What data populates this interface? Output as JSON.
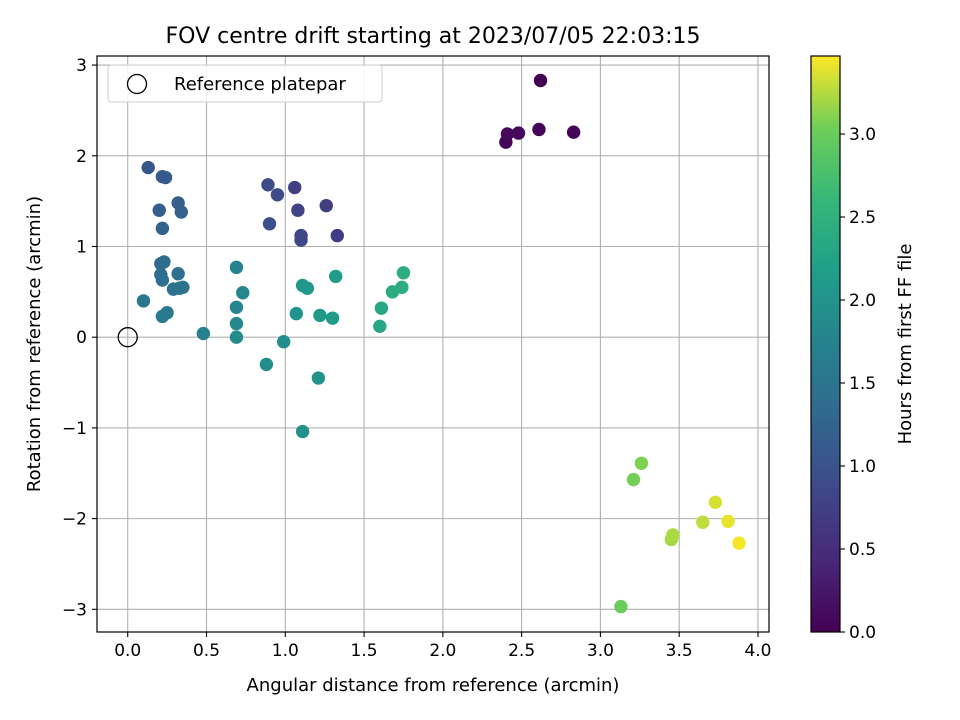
{
  "chart_data": {
    "type": "scatter",
    "title": "FOV centre drift starting at 2023/07/05 22:03:15",
    "xlabel": "Angular distance from reference (arcmin)",
    "ylabel": "Rotation from reference (arcmin)",
    "xlim": [
      -0.195,
      4.07
    ],
    "ylim": [
      -3.25,
      3.1
    ],
    "xticks": [
      0.0,
      0.5,
      1.0,
      1.5,
      2.0,
      2.5,
      3.0,
      3.5,
      4.0
    ],
    "xtick_labels": [
      "0.0",
      "0.5",
      "1.0",
      "1.5",
      "2.0",
      "2.5",
      "3.0",
      "3.5",
      "4.0"
    ],
    "yticks": [
      -3,
      -2,
      -1,
      0,
      1,
      2,
      3
    ],
    "ytick_labels": [
      "−3",
      "−2",
      "−1",
      "0",
      "1",
      "2",
      "3"
    ],
    "grid": true,
    "legend": {
      "position": "top-left",
      "entries": [
        "Reference platepar"
      ]
    },
    "reference_point": {
      "x": 0.0,
      "y": 0.0,
      "label": "Reference platepar"
    },
    "colorbar": {
      "label": "Hours from first FF file",
      "range": [
        0.0,
        3.47
      ],
      "colormap": "viridis",
      "ticks": [
        0.0,
        0.5,
        1.0,
        1.5,
        2.0,
        2.5,
        3.0
      ],
      "tick_labels": [
        "0.0",
        "0.5",
        "1.0",
        "1.5",
        "2.0",
        "2.5",
        "3.0"
      ]
    },
    "points": [
      {
        "x": 2.62,
        "y": 2.83,
        "h": 0.0
      },
      {
        "x": 2.4,
        "y": 2.15,
        "h": 0.05
      },
      {
        "x": 2.41,
        "y": 2.24,
        "h": 0.08
      },
      {
        "x": 2.48,
        "y": 2.25,
        "h": 0.1
      },
      {
        "x": 2.61,
        "y": 2.29,
        "h": 0.06
      },
      {
        "x": 2.83,
        "y": 2.26,
        "h": 0.04
      },
      {
        "x": 1.33,
        "y": 1.12,
        "h": 0.7
      },
      {
        "x": 1.26,
        "y": 1.45,
        "h": 0.72
      },
      {
        "x": 1.06,
        "y": 1.65,
        "h": 0.75
      },
      {
        "x": 1.08,
        "y": 1.4,
        "h": 0.8
      },
      {
        "x": 1.1,
        "y": 1.12,
        "h": 0.82
      },
      {
        "x": 1.1,
        "y": 1.07,
        "h": 0.85
      },
      {
        "x": 0.89,
        "y": 1.68,
        "h": 0.88
      },
      {
        "x": 0.95,
        "y": 1.57,
        "h": 0.9
      },
      {
        "x": 0.9,
        "y": 1.25,
        "h": 0.95
      },
      {
        "x": 0.13,
        "y": 1.87,
        "h": 1.05
      },
      {
        "x": 0.22,
        "y": 1.77,
        "h": 1.08
      },
      {
        "x": 0.24,
        "y": 1.76,
        "h": 1.1
      },
      {
        "x": 0.2,
        "y": 1.4,
        "h": 1.15
      },
      {
        "x": 0.32,
        "y": 1.48,
        "h": 1.18
      },
      {
        "x": 0.34,
        "y": 1.38,
        "h": 1.2
      },
      {
        "x": 0.22,
        "y": 1.2,
        "h": 1.22
      },
      {
        "x": 0.21,
        "y": 0.81,
        "h": 1.35
      },
      {
        "x": 0.23,
        "y": 0.83,
        "h": 1.36
      },
      {
        "x": 0.21,
        "y": 0.69,
        "h": 1.38
      },
      {
        "x": 0.22,
        "y": 0.63,
        "h": 1.4
      },
      {
        "x": 0.32,
        "y": 0.7,
        "h": 1.45
      },
      {
        "x": 0.29,
        "y": 0.53,
        "h": 1.48
      },
      {
        "x": 0.33,
        "y": 0.54,
        "h": 1.5
      },
      {
        "x": 0.35,
        "y": 0.55,
        "h": 1.5
      },
      {
        "x": 0.1,
        "y": 0.4,
        "h": 1.55
      },
      {
        "x": 0.25,
        "y": 0.27,
        "h": 1.58
      },
      {
        "x": 0.22,
        "y": 0.23,
        "h": 1.6
      },
      {
        "x": 0.48,
        "y": 0.04,
        "h": 1.7
      },
      {
        "x": 0.69,
        "y": 0.77,
        "h": 1.75
      },
      {
        "x": 0.73,
        "y": 0.49,
        "h": 1.8
      },
      {
        "x": 0.69,
        "y": 0.33,
        "h": 1.82
      },
      {
        "x": 0.69,
        "y": 0.15,
        "h": 1.85
      },
      {
        "x": 0.69,
        "y": 0.0,
        "h": 1.88
      },
      {
        "x": 0.88,
        "y": -0.3,
        "h": 1.9
      },
      {
        "x": 0.99,
        "y": -0.05,
        "h": 1.92
      },
      {
        "x": 1.11,
        "y": -1.04,
        "h": 1.95
      },
      {
        "x": 1.21,
        "y": -0.45,
        "h": 2.0
      },
      {
        "x": 1.07,
        "y": 0.26,
        "h": 2.02
      },
      {
        "x": 1.11,
        "y": 0.57,
        "h": 2.05
      },
      {
        "x": 1.14,
        "y": 0.54,
        "h": 2.08
      },
      {
        "x": 1.22,
        "y": 0.24,
        "h": 2.1
      },
      {
        "x": 1.3,
        "y": 0.21,
        "h": 2.12
      },
      {
        "x": 1.32,
        "y": 0.67,
        "h": 2.15
      },
      {
        "x": 1.6,
        "y": 0.12,
        "h": 2.3
      },
      {
        "x": 1.61,
        "y": 0.32,
        "h": 2.32
      },
      {
        "x": 1.68,
        "y": 0.5,
        "h": 2.4
      },
      {
        "x": 1.74,
        "y": 0.55,
        "h": 2.42
      },
      {
        "x": 1.75,
        "y": 0.71,
        "h": 2.45
      },
      {
        "x": 3.13,
        "y": -2.97,
        "h": 3.0
      },
      {
        "x": 3.21,
        "y": -1.57,
        "h": 3.05
      },
      {
        "x": 3.26,
        "y": -1.39,
        "h": 3.08
      },
      {
        "x": 3.45,
        "y": -2.23,
        "h": 3.2
      },
      {
        "x": 3.46,
        "y": -2.18,
        "h": 3.22
      },
      {
        "x": 3.65,
        "y": -2.04,
        "h": 3.28
      },
      {
        "x": 3.73,
        "y": -1.82,
        "h": 3.35
      },
      {
        "x": 3.81,
        "y": -2.03,
        "h": 3.4
      },
      {
        "x": 3.88,
        "y": -2.27,
        "h": 3.45
      }
    ]
  }
}
